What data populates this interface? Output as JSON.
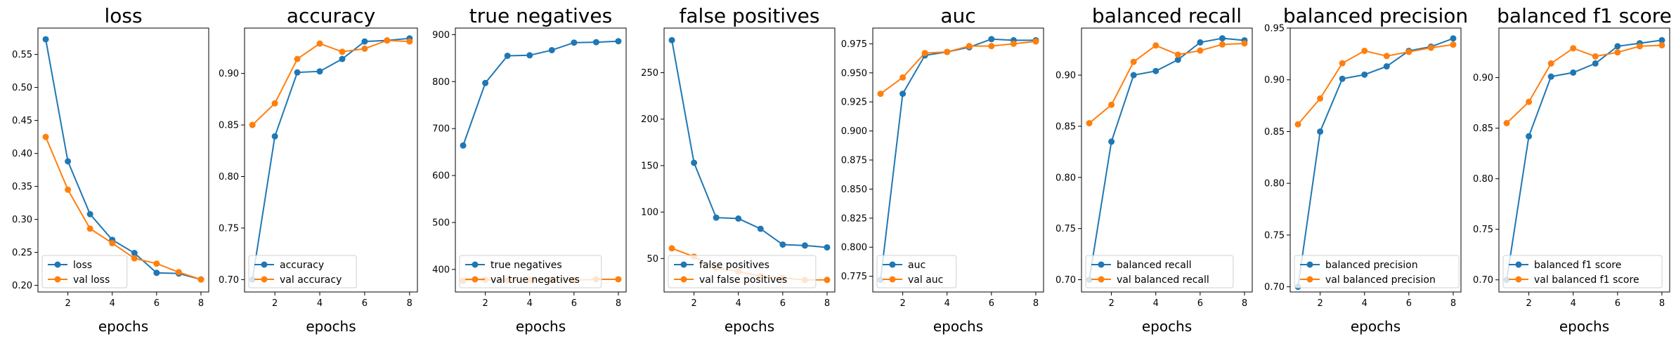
{
  "colors": {
    "train": "#1f77b4",
    "val": "#ff7f0e"
  },
  "chart_data": [
    {
      "type": "line",
      "title": "loss",
      "xlabel": "epochs",
      "x": [
        1,
        2,
        3,
        4,
        5,
        6,
        7,
        8
      ],
      "xticks": [
        2,
        4,
        6,
        8
      ],
      "ylim": [
        0.19,
        0.59
      ],
      "yticks": [
        0.2,
        0.25,
        0.3,
        0.35,
        0.4,
        0.45,
        0.5,
        0.55
      ],
      "ytick_labels": [
        "0.20",
        "0.25",
        "0.30",
        "0.35",
        "0.40",
        "0.45",
        "0.50",
        "0.55"
      ],
      "legend_position": "lower left",
      "series": [
        {
          "name": "loss",
          "values": [
            0.573,
            0.388,
            0.308,
            0.269,
            0.249,
            0.219,
            0.218,
            0.209
          ]
        },
        {
          "name": "val loss",
          "values": [
            0.425,
            0.345,
            0.286,
            0.264,
            0.241,
            0.233,
            0.22,
            0.209
          ]
        }
      ]
    },
    {
      "type": "line",
      "title": "accuracy",
      "xlabel": "epochs",
      "x": [
        1,
        2,
        3,
        4,
        5,
        6,
        7,
        8
      ],
      "xticks": [
        2,
        4,
        6,
        8
      ],
      "ylim": [
        0.688,
        0.944
      ],
      "yticks": [
        0.7,
        0.75,
        0.8,
        0.85,
        0.9
      ],
      "ytick_labels": [
        "0.70",
        "0.75",
        "0.80",
        "0.85",
        "0.90"
      ],
      "legend_position": "lower left",
      "series": [
        {
          "name": "accuracy",
          "values": [
            0.7,
            0.839,
            0.901,
            0.902,
            0.914,
            0.931,
            0.932,
            0.934
          ]
        },
        {
          "name": "val accuracy",
          "values": [
            0.85,
            0.871,
            0.914,
            0.929,
            0.921,
            0.924,
            0.932,
            0.931
          ]
        }
      ]
    },
    {
      "type": "line",
      "title": "true negatives",
      "xlabel": "epochs",
      "x": [
        1,
        2,
        3,
        4,
        5,
        6,
        7,
        8
      ],
      "xticks": [
        2,
        4,
        6,
        8
      ],
      "ylim": [
        352,
        914
      ],
      "yticks": [
        400,
        500,
        600,
        700,
        800,
        900
      ],
      "ytick_labels": [
        "400",
        "500",
        "600",
        "700",
        "800",
        "900"
      ],
      "legend_position": "lower left",
      "series": [
        {
          "name": "true negatives",
          "values": [
            664,
            797,
            855,
            856,
            867,
            883,
            884,
            886
          ]
        },
        {
          "name": "val true negatives",
          "values": [
            376,
            378,
            377,
            378,
            378,
            377,
            379,
            379
          ]
        }
      ]
    },
    {
      "type": "line",
      "title": "false positives",
      "xlabel": "epochs",
      "x": [
        1,
        2,
        3,
        4,
        5,
        6,
        7,
        8
      ],
      "xticks": [
        2,
        4,
        6,
        8
      ],
      "ylim": [
        14,
        298
      ],
      "yticks": [
        50,
        100,
        150,
        200,
        250
      ],
      "ytick_labels": [
        "50",
        "100",
        "150",
        "200",
        "250"
      ],
      "legend_position": "lower left",
      "series": [
        {
          "name": "false positives",
          "values": [
            285,
            153,
            94,
            93,
            82,
            65,
            64,
            62
          ]
        },
        {
          "name": "val false positives",
          "values": [
            61,
            52,
            40,
            36,
            31,
            29,
            27,
            27
          ]
        }
      ]
    },
    {
      "type": "line",
      "title": "auc",
      "xlabel": "epochs",
      "x": [
        1,
        2,
        3,
        4,
        5,
        6,
        7,
        8
      ],
      "xticks": [
        2,
        4,
        6,
        8
      ],
      "ylim": [
        0.7615,
        0.9885
      ],
      "yticks": [
        0.775,
        0.8,
        0.825,
        0.85,
        0.875,
        0.9,
        0.925,
        0.95,
        0.975
      ],
      "ytick_labels": [
        "0.775",
        "0.800",
        "0.825",
        "0.850",
        "0.875",
        "0.900",
        "0.925",
        "0.950",
        "0.975"
      ],
      "legend_position": "lower left",
      "series": [
        {
          "name": "auc",
          "values": [
            0.772,
            0.932,
            0.965,
            0.968,
            0.972,
            0.979,
            0.978,
            0.978
          ]
        },
        {
          "name": "val auc",
          "values": [
            0.932,
            0.946,
            0.967,
            0.968,
            0.973,
            0.973,
            0.975,
            0.977
          ]
        }
      ]
    },
    {
      "type": "line",
      "title": "balanced recall",
      "xlabel": "epochs",
      "x": [
        1,
        2,
        3,
        4,
        5,
        6,
        7,
        8
      ],
      "xticks": [
        2,
        4,
        6,
        8
      ],
      "ylim": [
        0.688,
        0.946
      ],
      "yticks": [
        0.7,
        0.75,
        0.8,
        0.85,
        0.9
      ],
      "ytick_labels": [
        "0.70",
        "0.75",
        "0.80",
        "0.85",
        "0.90"
      ],
      "legend_position": "lower left",
      "series": [
        {
          "name": "balanced recall",
          "values": [
            0.7,
            0.835,
            0.9,
            0.904,
            0.915,
            0.932,
            0.936,
            0.934
          ]
        },
        {
          "name": "val balanced recall",
          "values": [
            0.853,
            0.871,
            0.913,
            0.929,
            0.92,
            0.924,
            0.93,
            0.931
          ]
        }
      ]
    },
    {
      "type": "line",
      "title": "balanced precision",
      "xlabel": "epochs",
      "x": [
        1,
        2,
        3,
        4,
        5,
        6,
        7,
        8
      ],
      "xticks": [
        2,
        4,
        6,
        8
      ],
      "ylim": [
        0.695,
        0.95
      ],
      "yticks": [
        0.7,
        0.75,
        0.8,
        0.85,
        0.9,
        0.95
      ],
      "ytick_labels": [
        "0.70",
        "0.75",
        "0.80",
        "0.85",
        "0.90",
        "0.95"
      ],
      "legend_position": "lower left",
      "series": [
        {
          "name": "balanced precision",
          "values": [
            0.7,
            0.85,
            0.901,
            0.905,
            0.913,
            0.928,
            0.932,
            0.94
          ]
        },
        {
          "name": "val balanced precision",
          "values": [
            0.857,
            0.882,
            0.916,
            0.928,
            0.923,
            0.927,
            0.931,
            0.934
          ]
        }
      ]
    },
    {
      "type": "line",
      "title": "balanced f1 score",
      "xlabel": "epochs",
      "x": [
        1,
        2,
        3,
        4,
        5,
        6,
        7,
        8
      ],
      "xticks": [
        2,
        4,
        6,
        8
      ],
      "ylim": [
        0.688,
        0.949
      ],
      "yticks": [
        0.7,
        0.75,
        0.8,
        0.85,
        0.9
      ],
      "ytick_labels": [
        "0.70",
        "0.75",
        "0.80",
        "0.85",
        "0.90"
      ],
      "legend_position": "lower left",
      "series": [
        {
          "name": "balanced f1 score",
          "values": [
            0.7,
            0.842,
            0.901,
            0.905,
            0.914,
            0.931,
            0.934,
            0.937
          ]
        },
        {
          "name": "val balanced f1 score",
          "values": [
            0.855,
            0.876,
            0.914,
            0.929,
            0.921,
            0.925,
            0.931,
            0.932
          ]
        }
      ]
    }
  ]
}
